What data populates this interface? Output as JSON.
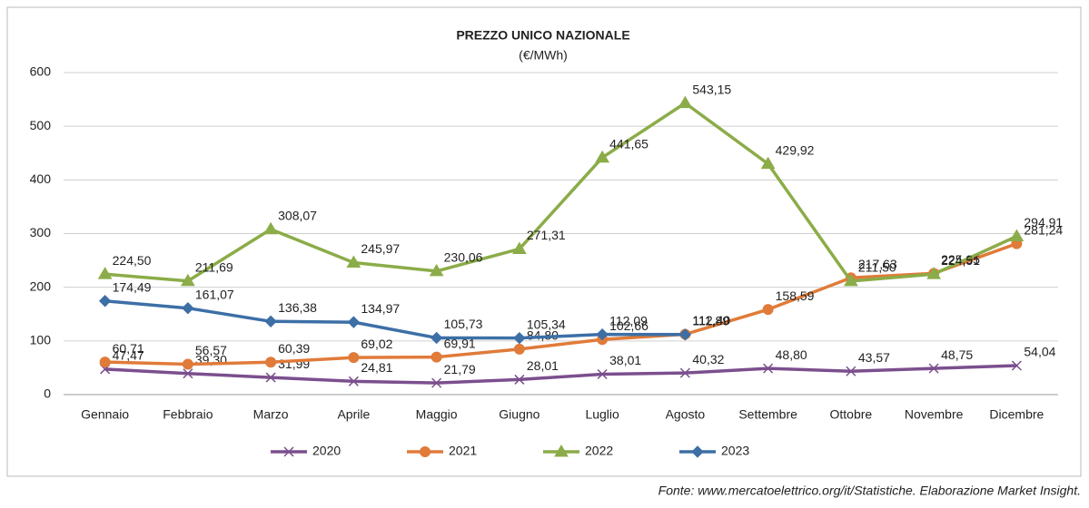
{
  "chart_data": {
    "type": "line",
    "title": "PREZZO UNICO NAZIONALE",
    "subtitle": "(€/MWh)",
    "source": "Fonte: www.mercatoelettrico.org/it/Statistiche. Elaborazione Market Insight.",
    "categories": [
      "Gennaio",
      "Febbraio",
      "Marzo",
      "Aprile",
      "Maggio",
      "Giugno",
      "Luglio",
      "Agosto",
      "Settembre",
      "Ottobre",
      "Novembre",
      "Dicembre"
    ],
    "ylim": [
      0,
      600
    ],
    "yticks": [
      0,
      100,
      200,
      300,
      400,
      500,
      600
    ],
    "grid": true,
    "legend": "bottom",
    "series": [
      {
        "name": "2020",
        "color": "#7b4f8e",
        "marker": "x",
        "values": [
          47.47,
          39.3,
          31.99,
          24.81,
          21.79,
          28.01,
          38.01,
          40.32,
          48.8,
          43.57,
          48.75,
          54.04
        ],
        "value_labels": [
          "47,47",
          "39,30",
          "31,99",
          "24,81",
          "21,79",
          "28,01",
          "38,01",
          "40,32",
          "48,80",
          "43,57",
          "48,75",
          "54,04"
        ]
      },
      {
        "name": "2021",
        "color": "#e07b39",
        "marker": "circle",
        "values": [
          60.71,
          56.57,
          60.39,
          69.02,
          69.91,
          84.8,
          102.66,
          112.4,
          158.59,
          217.63,
          225.95,
          281.24
        ],
        "value_labels": [
          "60,71",
          "56,57",
          "60,39",
          "69,02",
          "69,91",
          "84,80",
          "102,66",
          "112,40",
          "158,59",
          "217,63",
          "225,95",
          "281,24"
        ]
      },
      {
        "name": "2022",
        "color": "#8bac48",
        "marker": "triangle",
        "values": [
          224.5,
          211.69,
          308.07,
          245.97,
          230.06,
          271.31,
          441.65,
          543.15,
          429.92,
          211.5,
          224.51,
          294.91
        ],
        "value_labels": [
          "224,50",
          "211,69",
          "308,07",
          "245,97",
          "230,06",
          "271,31",
          "441,65",
          "543,15",
          "429,92",
          "211,50",
          "224,51",
          "294,91"
        ]
      },
      {
        "name": "2023",
        "color": "#3d6fa6",
        "marker": "diamond",
        "values": [
          174.49,
          161.07,
          136.38,
          134.97,
          105.73,
          105.34,
          112.09,
          111.89,
          null,
          null,
          null,
          null
        ],
        "value_labels": [
          "174,49",
          "161,07",
          "136,38",
          "134,97",
          "105,73",
          "105,34",
          "112,09",
          "111,89",
          null,
          null,
          null,
          null
        ]
      }
    ]
  }
}
